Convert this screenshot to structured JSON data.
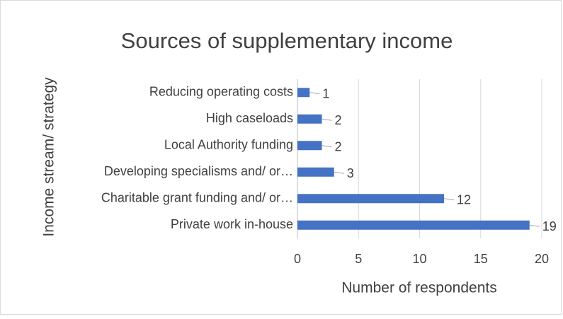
{
  "chart_data": {
    "type": "bar",
    "orientation": "horizontal",
    "title": "Sources of supplementary income",
    "x_label": "Number of respondents",
    "y_label": "Income stream/ strategy",
    "categories": [
      "Reducing operating costs",
      "High caseloads",
      "Local Authority funding",
      "Developing specialisms and/ or…",
      "Charitable grant funding and/ or…",
      "Private work in-house"
    ],
    "values": [
      1,
      2,
      2,
      3,
      12,
      19
    ],
    "color": "#4472c4",
    "xlim": [
      0,
      20
    ],
    "xticks": [
      0,
      5,
      10,
      15,
      20
    ],
    "grid": true
  }
}
